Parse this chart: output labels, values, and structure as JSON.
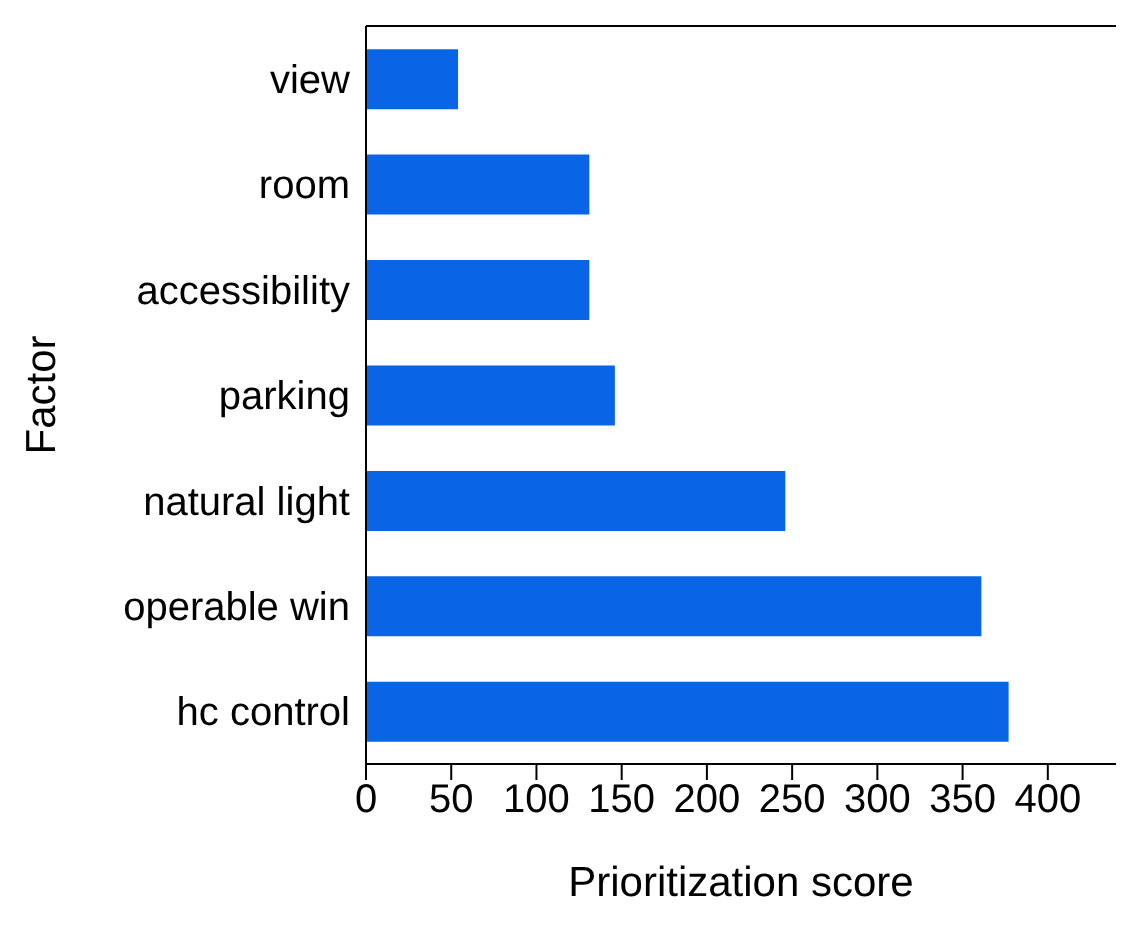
{
  "chart_data": {
    "type": "bar",
    "orientation": "horizontal",
    "xlabel": "Prioritization score",
    "ylabel": "Factor",
    "categories": [
      "view",
      "room",
      "accessibility",
      "parking",
      "natural light",
      "operable win",
      "hc control"
    ],
    "values": [
      54,
      131,
      131,
      146,
      246,
      361,
      377
    ],
    "color": "#0a64e6",
    "xlim": [
      0,
      440
    ],
    "xticks": [
      0,
      50,
      100,
      150,
      200,
      250,
      300,
      350,
      400
    ]
  }
}
